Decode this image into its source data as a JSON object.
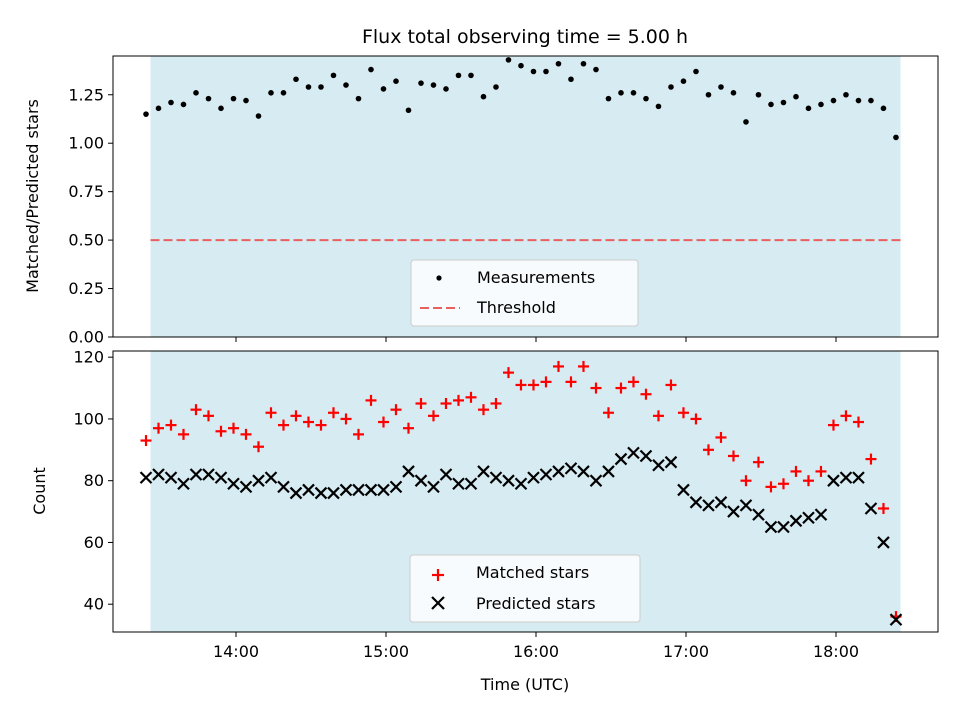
{
  "chart_data": [
    {
      "type": "scatter",
      "title": "Flux total observing time = 5.00 h",
      "xlabel": "",
      "ylabel": "Matched/Predicted stars",
      "ylim": [
        0,
        1.45
      ],
      "yticks": [
        "0.00",
        "0.25",
        "0.50",
        "0.75",
        "1.00",
        "1.25"
      ],
      "yticks_values": [
        0,
        0.25,
        0.5,
        0.75,
        1.0,
        1.25
      ],
      "legend_placement": "lower center",
      "threshold": {
        "name": "Threshold",
        "value": 0.5,
        "color": "#e86060",
        "style": "dashed"
      },
      "series": [
        {
          "name": "Measurements",
          "marker": "dot",
          "color": "#000000",
          "values": [
            1.15,
            1.18,
            1.21,
            1.2,
            1.26,
            1.23,
            1.18,
            1.23,
            1.22,
            1.14,
            1.26,
            1.26,
            1.33,
            1.29,
            1.29,
            1.35,
            1.3,
            1.23,
            1.38,
            1.28,
            1.32,
            1.17,
            1.31,
            1.3,
            1.28,
            1.35,
            1.35,
            1.24,
            1.29,
            1.43,
            1.4,
            1.37,
            1.37,
            1.41,
            1.33,
            1.41,
            1.38,
            1.23,
            1.26,
            1.26,
            1.23,
            1.19,
            1.29,
            1.32,
            1.37,
            1.25,
            1.29,
            1.26,
            1.11,
            1.25,
            1.2,
            1.21,
            1.24,
            1.18,
            1.2,
            1.22,
            1.25,
            1.22,
            1.22,
            1.18,
            1.03
          ]
        }
      ]
    },
    {
      "type": "scatter",
      "title": "",
      "xlabel": "Time (UTC)",
      "ylabel": "Count",
      "ylim": [
        31,
        122
      ],
      "yticks": [
        "40",
        "60",
        "80",
        "100",
        "120"
      ],
      "yticks_values": [
        40,
        60,
        80,
        100,
        120
      ],
      "legend_placement": "lower center",
      "series": [
        {
          "name": "Matched stars",
          "marker": "plus",
          "color": "#ff0000",
          "values": [
            93,
            97,
            98,
            95,
            103,
            101,
            96,
            97,
            95,
            91,
            102,
            98,
            101,
            99,
            98,
            102,
            100,
            95,
            106,
            99,
            103,
            97,
            105,
            101,
            105,
            106,
            107,
            103,
            105,
            115,
            111,
            111,
            112,
            117,
            112,
            117,
            110,
            102,
            110,
            112,
            108,
            101,
            111,
            102,
            100,
            90,
            94,
            88,
            80,
            86,
            78,
            79,
            83,
            80,
            83,
            98,
            101,
            99,
            87,
            71,
            36
          ]
        },
        {
          "name": "Predicted stars",
          "marker": "x",
          "color": "#000000",
          "values": [
            81,
            82,
            81,
            79,
            82,
            82,
            81,
            79,
            78,
            80,
            81,
            78,
            76,
            77,
            76,
            76,
            77,
            77,
            77,
            77,
            78,
            83,
            80,
            78,
            82,
            79,
            79,
            83,
            81,
            80,
            79,
            81,
            82,
            83,
            84,
            83,
            80,
            83,
            87,
            89,
            88,
            85,
            86,
            77,
            73,
            72,
            73,
            70,
            72,
            69,
            65,
            65,
            67,
            68,
            69,
            80,
            81,
            81,
            71,
            60,
            35
          ]
        }
      ]
    }
  ],
  "shared_x": {
    "unit": "hours (UTC)",
    "start": 13.4,
    "step": 0.08333,
    "xlim": [
      13.18,
      18.68
    ],
    "ticks": [
      "14:00",
      "15:00",
      "16:00",
      "17:00",
      "18:00"
    ],
    "ticks_values": [
      14,
      15,
      16,
      17,
      18
    ],
    "observing_window": [
      13.43,
      18.43
    ],
    "observing_window_color": "#add8e6"
  }
}
